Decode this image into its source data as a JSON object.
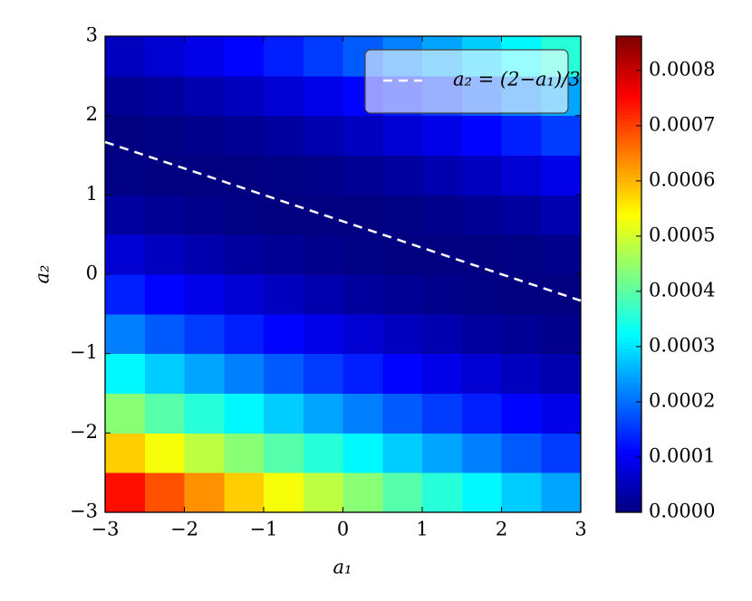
{
  "chart_data": {
    "type": "heatmap",
    "colormap": "jet",
    "xlabel": "a₁",
    "ylabel": "a₂",
    "xlim": [
      -3,
      3
    ],
    "ylim": [
      -3,
      3
    ],
    "xticks": [
      {
        "value": -3,
        "label": "−3"
      },
      {
        "value": -2,
        "label": "−2"
      },
      {
        "value": -1,
        "label": "−1"
      },
      0,
      1,
      2,
      3
    ],
    "yticks": [
      {
        "value": -3,
        "label": "−3"
      },
      {
        "value": -2,
        "label": "−2"
      },
      {
        "value": -1,
        "label": "−1"
      },
      0,
      1,
      2,
      3
    ],
    "x": [
      -2.75,
      -2.25,
      -1.75,
      -1.25,
      -0.75,
      -0.25,
      0.25,
      0.75,
      1.25,
      1.75,
      2.25,
      2.75
    ],
    "y": [
      -2.75,
      -2.25,
      -1.75,
      -1.25,
      -0.75,
      -0.25,
      0.25,
      0.75,
      1.25,
      1.75,
      2.25,
      2.75
    ],
    "z": [
      [
        0.000742,
        0.000686,
        0.000632,
        0.000581,
        0.000531,
        0.000484,
        0.000439,
        0.000396,
        0.000356,
        0.000317,
        0.000281,
        0.000247
      ],
      [
        0.000581,
        0.000531,
        0.000484,
        0.000439,
        0.000396,
        0.000356,
        0.000317,
        0.000281,
        0.000247,
        0.000215,
        0.000185,
        0.000158
      ],
      [
        0.000439,
        0.000396,
        0.000356,
        0.000317,
        0.000281,
        0.000247,
        0.000215,
        0.000185,
        0.000158,
        0.000133,
        0.00011,
        8.9e-05
      ],
      [
        0.000317,
        0.000281,
        0.000247,
        0.000215,
        0.000185,
        0.000158,
        0.000133,
        0.00011,
        8.9e-05,
        7e-05,
        5.4e-05,
        4e-05
      ],
      [
        0.000215,
        0.000185,
        0.000158,
        0.000133,
        0.00011,
        8.9e-05,
        7e-05,
        5.4e-05,
        4e-05,
        2.7e-05,
        1.8e-05,
        1e-05
      ],
      [
        0.000133,
        0.00011,
        8.9e-05,
        7e-05,
        5.4e-05,
        4e-05,
        2.7e-05,
        1.8e-05,
        1e-05,
        4e-06,
        1e-06,
        0
      ],
      [
        7e-05,
        5.4e-05,
        4e-05,
        2.7e-05,
        1.8e-05,
        1e-05,
        4e-06,
        1e-06,
        0,
        1e-06,
        4e-06,
        1e-05
      ],
      [
        2.7e-05,
        1.8e-05,
        1e-05,
        4e-06,
        1e-06,
        0,
        1e-06,
        4e-06,
        1e-05,
        1.8e-05,
        2.7e-05,
        4e-05
      ],
      [
        4e-06,
        1e-06,
        0,
        1e-06,
        4e-06,
        1e-05,
        1.8e-05,
        2.7e-05,
        4e-05,
        5.4e-05,
        7e-05,
        8.9e-05
      ],
      [
        1e-06,
        4e-06,
        1e-05,
        1.8e-05,
        2.7e-05,
        4e-05,
        5.4e-05,
        7e-05,
        8.9e-05,
        0.00011,
        0.000133,
        0.000158
      ],
      [
        1.8e-05,
        2.7e-05,
        4e-05,
        5.4e-05,
        7e-05,
        8.9e-05,
        0.00011,
        0.000133,
        0.000158,
        0.000185,
        0.000215,
        0.000247
      ],
      [
        5.4e-05,
        7e-05,
        8.9e-05,
        0.00011,
        0.000133,
        0.000158,
        0.000185,
        0.000215,
        0.000247,
        0.000281,
        0.000317,
        0.000356
      ]
    ],
    "clim": [
      0,
      0.000862
    ],
    "cticks": [
      {
        "value": 0,
        "label": "0.0000"
      },
      {
        "value": 0.0001,
        "label": "0.0001"
      },
      {
        "value": 0.0002,
        "label": "0.0002"
      },
      {
        "value": 0.0003,
        "label": "0.0003"
      },
      {
        "value": 0.0004,
        "label": "0.0004"
      },
      {
        "value": 0.0005,
        "label": "0.0005"
      },
      {
        "value": 0.0006,
        "label": "0.0006"
      },
      {
        "value": 0.0007,
        "label": "0.0007"
      },
      {
        "value": 0.0008,
        "label": "0.0008"
      }
    ],
    "series": [
      {
        "name": "a₂ = (2−a₁)/3",
        "color": "#ffffff",
        "x": [
          -3,
          3
        ],
        "values": [
          1.6667,
          -0.3333
        ]
      }
    ],
    "legend": "upper right"
  }
}
